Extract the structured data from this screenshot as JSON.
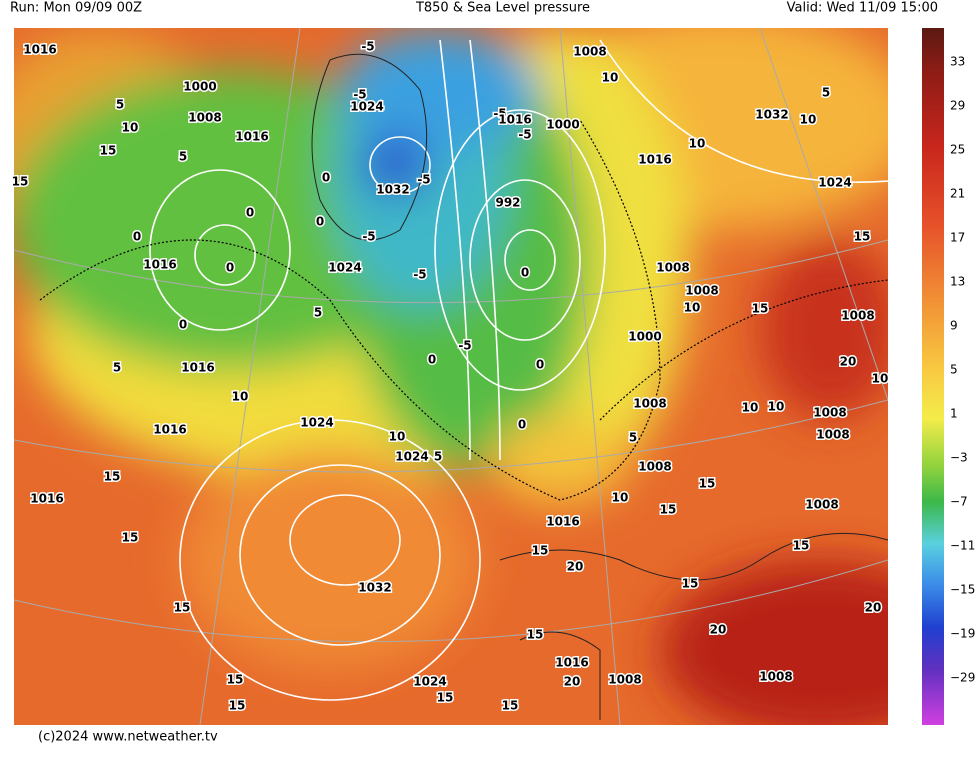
{
  "header": {
    "run": "Run: Mon 09/09 00Z",
    "title": "T850 & Sea Level pressure",
    "valid": "Valid: Wed 11/09 15:00"
  },
  "footer": "(c)2024 www.netweather.tv",
  "colorbar": {
    "ticks": [
      "33",
      "29",
      "25",
      "21",
      "17",
      "13",
      "9",
      "5",
      "1",
      "−3",
      "−7",
      "−11",
      "−15",
      "−19",
      "−29"
    ]
  },
  "map": {
    "labels": [
      "1016",
      "1000",
      "1008",
      "1016",
      "-5",
      "-5",
      "1024",
      "1032",
      "-5",
      "-5",
      "1024",
      "-5",
      "-5",
      "1016",
      "-5",
      "1000",
      "992",
      "0",
      "-5",
      "1008",
      "10",
      "1016",
      "10",
      "1032",
      "10",
      "5",
      "1024",
      "15",
      "1008",
      "1008",
      "10",
      "15",
      "1008",
      "1000",
      "20",
      "10",
      "1008",
      "10",
      "10",
      "1008",
      "1008",
      "5",
      "1008",
      "15",
      "10",
      "15",
      "1008",
      "1016",
      "15",
      "20",
      "15",
      "15",
      "20",
      "20",
      "15",
      "1016",
      "20",
      "1008",
      "1008",
      "1024",
      "15",
      "15",
      "15",
      "15",
      "15",
      "15",
      "1016",
      "15",
      "1016",
      "10",
      "1016",
      "5",
      "0",
      "1016",
      "0",
      "0",
      "0",
      "0",
      "0",
      "5",
      "0",
      "0",
      "0",
      "10",
      "1024",
      "5",
      "1024",
      "1032",
      "15",
      "5",
      "10",
      "5",
      "15"
    ]
  }
}
